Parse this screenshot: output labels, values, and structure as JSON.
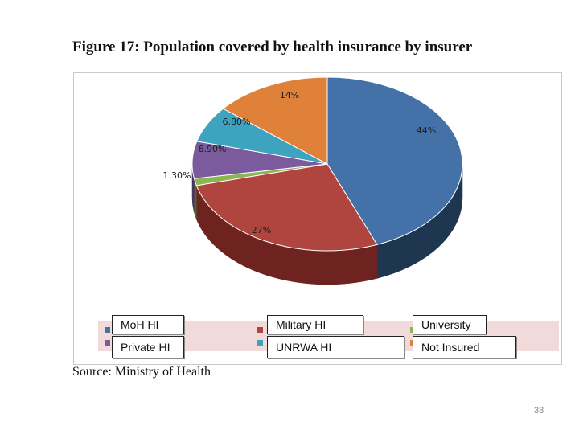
{
  "figure": {
    "title": "Figure 17: Population covered by health insurance by insurer",
    "source": "Source: Ministry of Health",
    "page_number": "38"
  },
  "chart_data": {
    "type": "pie",
    "title": "Population covered by health insurance by insurer",
    "slices": [
      {
        "label": "MoH HI",
        "value": 44,
        "display": "44%",
        "color": "#4472a8",
        "side_color": "#1f3651"
      },
      {
        "label": "Military HI",
        "value": 27,
        "display": "27%",
        "color": "#b04540",
        "side_color": "#6e2320"
      },
      {
        "label": "University",
        "value": 1.3,
        "display": "1.30%",
        "color": "#8db555",
        "side_color": "#4f6b2a"
      },
      {
        "label": "Private HI",
        "value": 6.9,
        "display": "6.90%",
        "color": "#7b5b9e",
        "side_color": "#4a3462"
      },
      {
        "label": "UNRWA HI",
        "value": 6.8,
        "display": "6.80%",
        "color": "#3ea3bf",
        "side_color": "#1f6a7e"
      },
      {
        "label": "Not Insured",
        "value": 14,
        "display": "14%",
        "color": "#e0813a",
        "side_color": "#94521f"
      }
    ],
    "legend": {
      "placement": "bottom",
      "entries": [
        "MoH HI",
        "Military HI",
        "University",
        "Private HI",
        "UNRWA HI",
        "Not Insured"
      ]
    }
  }
}
